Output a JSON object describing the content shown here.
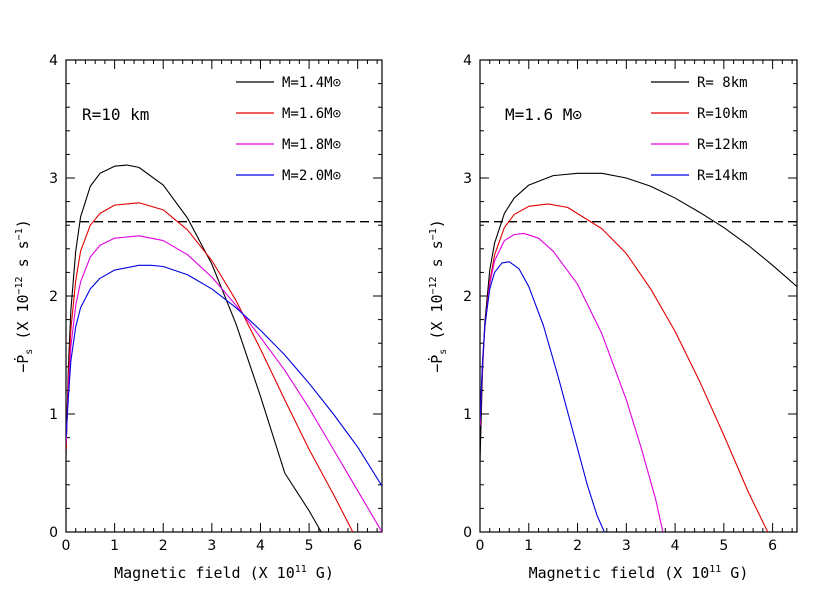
{
  "chart_data": [
    {
      "type": "line",
      "annotation": "R=10 km",
      "xlabel": "Magnetic field (X 10^11 G)",
      "ylabel": "-Ṗs (X 10^-12 s s^-1)",
      "xlim": [
        0,
        6.5
      ],
      "ylim": [
        0,
        4
      ],
      "xticks": [
        0,
        1,
        2,
        3,
        4,
        5,
        6
      ],
      "yticks": [
        0,
        1,
        2,
        3,
        4
      ],
      "xtick_labels": [
        "0",
        "1",
        "2",
        "3",
        "4",
        "5",
        "6"
      ],
      "ytick_labels": [
        "0",
        "1",
        "2",
        "3",
        "4"
      ],
      "reference_line": {
        "y": 2.63,
        "style": "dashed"
      },
      "legend_position": "top-right",
      "series": [
        {
          "name": "M=1.4M⊙",
          "color": "#000000",
          "x": [
            0.0,
            0.05,
            0.1,
            0.2,
            0.3,
            0.5,
            0.7,
            1.0,
            1.25,
            1.5,
            2.0,
            2.5,
            3.0,
            3.5,
            4.0,
            4.5,
            5.0,
            5.25
          ],
          "y": [
            0.65,
            1.4,
            1.88,
            2.38,
            2.67,
            2.93,
            3.04,
            3.1,
            3.11,
            3.09,
            2.94,
            2.66,
            2.27,
            1.76,
            1.15,
            0.5,
            0.18,
            0.0
          ]
        },
        {
          "name": "M=1.6M⊙",
          "color": "#e00000",
          "x": [
            0.0,
            0.05,
            0.1,
            0.2,
            0.3,
            0.5,
            0.7,
            1.0,
            1.5,
            2.0,
            2.5,
            3.0,
            3.5,
            4.0,
            4.5,
            5.0,
            5.5,
            5.9
          ],
          "y": [
            0.7,
            1.3,
            1.72,
            2.13,
            2.38,
            2.6,
            2.7,
            2.77,
            2.79,
            2.73,
            2.56,
            2.3,
            1.96,
            1.55,
            1.12,
            0.7,
            0.32,
            0.0
          ]
        },
        {
          "name": "M=1.8M⊙",
          "color": "#e000e0",
          "x": [
            0.0,
            0.05,
            0.1,
            0.2,
            0.3,
            0.5,
            0.7,
            1.0,
            1.5,
            2.0,
            2.5,
            3.0,
            3.5,
            4.0,
            4.5,
            5.0,
            5.5,
            6.0,
            6.5
          ],
          "y": [
            0.75,
            1.22,
            1.57,
            1.92,
            2.12,
            2.33,
            2.43,
            2.49,
            2.51,
            2.47,
            2.35,
            2.16,
            1.92,
            1.65,
            1.37,
            1.05,
            0.7,
            0.35,
            0.0
          ]
        },
        {
          "name": "M=2.0M⊙",
          "color": "#0000e0",
          "x": [
            0.0,
            0.05,
            0.1,
            0.2,
            0.3,
            0.5,
            0.7,
            1.0,
            1.5,
            1.75,
            2.0,
            2.5,
            3.0,
            3.5,
            4.0,
            4.5,
            5.0,
            5.5,
            6.0,
            6.5
          ],
          "y": [
            0.8,
            1.15,
            1.45,
            1.74,
            1.9,
            2.06,
            2.15,
            2.22,
            2.26,
            2.26,
            2.25,
            2.18,
            2.06,
            1.9,
            1.71,
            1.5,
            1.26,
            1.0,
            0.72,
            0.39
          ]
        }
      ]
    },
    {
      "type": "line",
      "annotation": "M=1.6 M⊙",
      "xlabel": "Magnetic field (X 10^11 G)",
      "ylabel": "-Ṗs (X 10^-12 s s^-1)",
      "xlim": [
        0,
        6.5
      ],
      "ylim": [
        0,
        4
      ],
      "xticks": [
        0,
        1,
        2,
        3,
        4,
        5,
        6
      ],
      "yticks": [
        0,
        1,
        2,
        3,
        4
      ],
      "xtick_labels": [
        "0",
        "1",
        "2",
        "3",
        "4",
        "5",
        "6"
      ],
      "ytick_labels": [
        "0",
        "1",
        "2",
        "3",
        "4"
      ],
      "reference_line": {
        "y": 2.63,
        "style": "dashed"
      },
      "legend_position": "top-right",
      "series": [
        {
          "name": "R= 8km",
          "color": "#000000",
          "x": [
            0.0,
            0.05,
            0.1,
            0.2,
            0.3,
            0.5,
            0.7,
            1.0,
            1.5,
            2.0,
            2.5,
            3.0,
            3.5,
            4.0,
            4.5,
            5.0,
            5.5,
            6.0,
            6.5
          ],
          "y": [
            0.6,
            1.35,
            1.78,
            2.22,
            2.45,
            2.7,
            2.83,
            2.94,
            3.02,
            3.04,
            3.04,
            3.0,
            2.93,
            2.83,
            2.71,
            2.58,
            2.43,
            2.26,
            2.08
          ]
        },
        {
          "name": "R=10km",
          "color": "#e00000",
          "x": [
            0.0,
            0.05,
            0.1,
            0.2,
            0.3,
            0.5,
            0.7,
            1.0,
            1.4,
            1.8,
            2.5,
            3.0,
            3.5,
            4.0,
            4.5,
            5.0,
            5.5,
            5.9
          ],
          "y": [
            0.9,
            1.4,
            1.75,
            2.12,
            2.35,
            2.58,
            2.69,
            2.76,
            2.78,
            2.75,
            2.57,
            2.36,
            2.06,
            1.7,
            1.28,
            0.82,
            0.34,
            0.0
          ]
        },
        {
          "name": "R=12km",
          "color": "#e000e0",
          "x": [
            0.0,
            0.05,
            0.1,
            0.2,
            0.3,
            0.5,
            0.7,
            0.9,
            1.2,
            1.5,
            2.0,
            2.5,
            3.0,
            3.3,
            3.6,
            3.75
          ],
          "y": [
            0.9,
            1.4,
            1.74,
            2.1,
            2.3,
            2.47,
            2.52,
            2.53,
            2.49,
            2.38,
            2.1,
            1.68,
            1.12,
            0.72,
            0.28,
            0.0
          ]
        },
        {
          "name": "R=14km",
          "color": "#0000e0",
          "x": [
            0.0,
            0.05,
            0.1,
            0.2,
            0.3,
            0.45,
            0.6,
            0.8,
            1.0,
            1.3,
            1.6,
            1.9,
            2.2,
            2.4,
            2.55
          ],
          "y": [
            0.95,
            1.43,
            1.75,
            2.06,
            2.2,
            2.28,
            2.29,
            2.23,
            2.08,
            1.75,
            1.32,
            0.86,
            0.4,
            0.14,
            0.0
          ]
        }
      ]
    }
  ]
}
